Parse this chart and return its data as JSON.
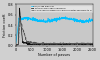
{
  "title": "",
  "xlabel": "Number of passes",
  "ylabel": "Friction coeff.",
  "xlim": [
    0,
    2500
  ],
  "ylim": [
    0,
    0.8
  ],
  "yticks": [
    0.0,
    0.2,
    0.4,
    0.6,
    0.8
  ],
  "xticks": [
    0,
    500,
    1000,
    1500,
    2000,
    2500
  ],
  "background": "#d0d0d0",
  "legend1": "UHV/0.1Pa high Vac",
  "legend2": "1 kPa glycerol vapour pressure",
  "legend3": "10-3 Pa vapour pressure of glycerol after exposure to H",
  "color_cyan": "#00bfff",
  "color_black": "#111111",
  "color_darkgray": "#555555"
}
